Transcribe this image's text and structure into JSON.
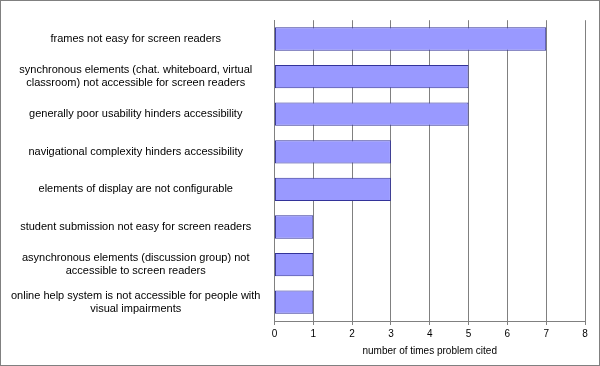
{
  "chart_data": {
    "type": "bar",
    "orientation": "horizontal",
    "categories": [
      "frames not easy for screen readers",
      "synchronous elements (chat. whiteboard, virtual classroom) not accessible for screen readers",
      "generally poor usability hinders accessibility",
      "navigational complexity hinders accessibility",
      "elements of display are not configurable",
      "student submission not easy for screen readers",
      "asynchronous elements (discussion group) not accessible to screen readers",
      "online help system is not accessible for people with visual impairments"
    ],
    "values": [
      7,
      5,
      5,
      3,
      3,
      1,
      1,
      1
    ],
    "color": "#9999ff",
    "x_label": "number of times problem cited",
    "xlim": [
      0,
      8
    ],
    "xticks": [
      0,
      1,
      2,
      3,
      4,
      5,
      6,
      7,
      8
    ],
    "grid": true
  }
}
